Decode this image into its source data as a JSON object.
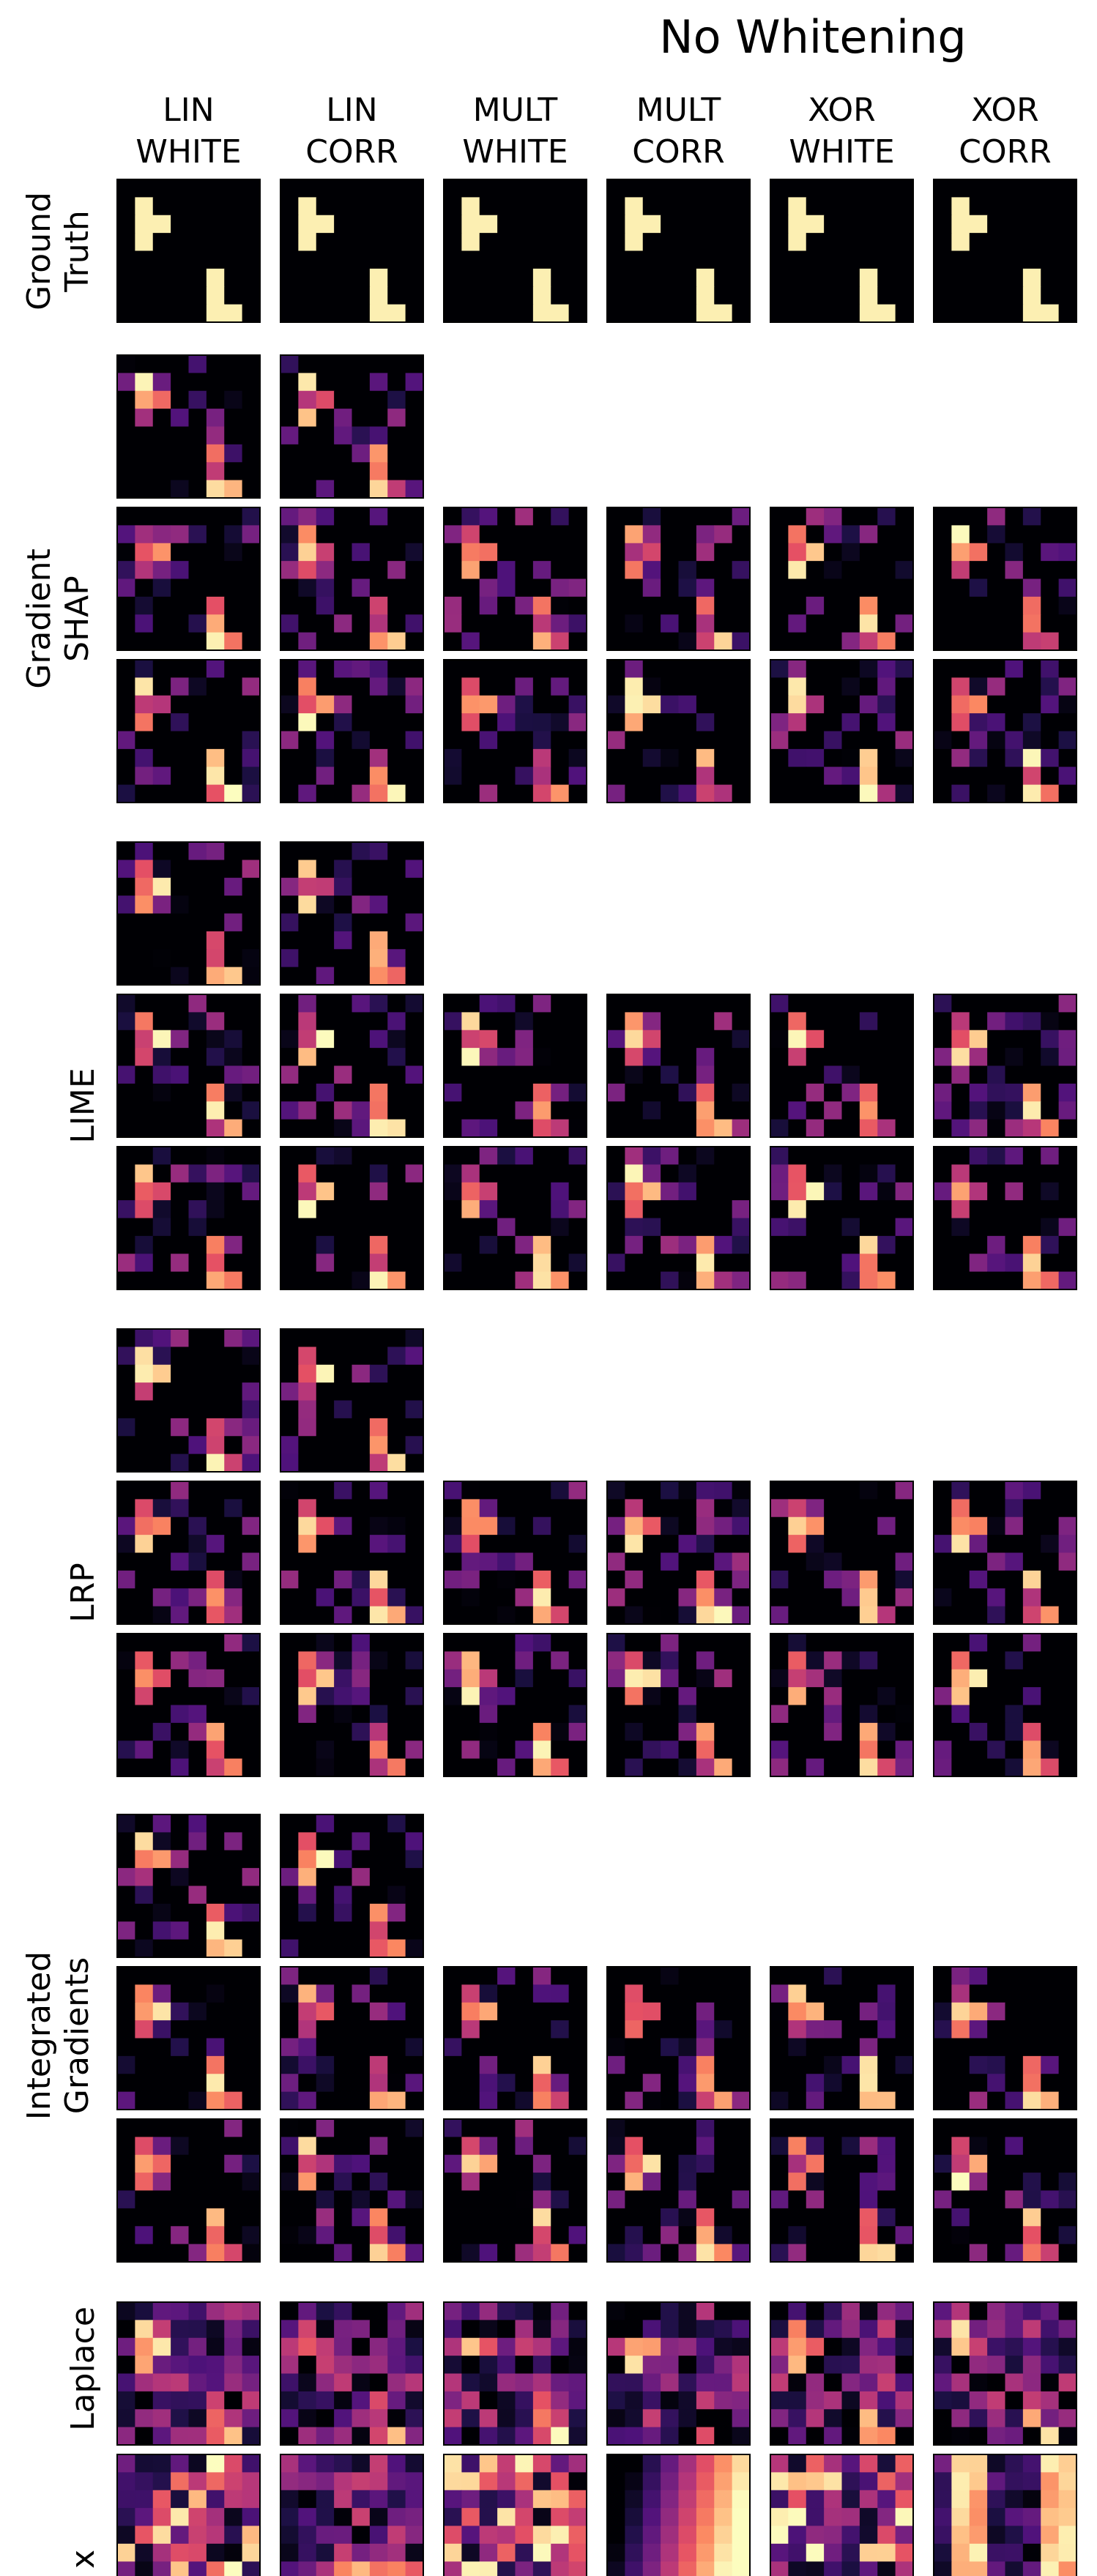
{
  "figure": {
    "title": "No Whitening",
    "columns": [
      {
        "line1": "LIN",
        "line2": "WHITE"
      },
      {
        "line1": "LIN",
        "line2": "CORR"
      },
      {
        "line1": "MULT",
        "line2": "WHITE"
      },
      {
        "line1": "MULT",
        "line2": "CORR"
      },
      {
        "line1": "XOR",
        "line2": "WHITE"
      },
      {
        "line1": "XOR",
        "line2": "CORR"
      }
    ],
    "row_groups": [
      {
        "line1": "Ground",
        "line2": "Truth"
      },
      {
        "line1": "Gradient",
        "line2": "SHAP"
      },
      {
        "line1": "LIME",
        "line2": ""
      },
      {
        "line1": "LRP",
        "line2": ""
      },
      {
        "line1": "Integrated",
        "line2": "Gradients"
      },
      {
        "line1": "Laplace",
        "line2": ""
      },
      {
        "line1": "x",
        "line2": ""
      }
    ],
    "colormap": "magma",
    "grid_size": 8
  }
}
